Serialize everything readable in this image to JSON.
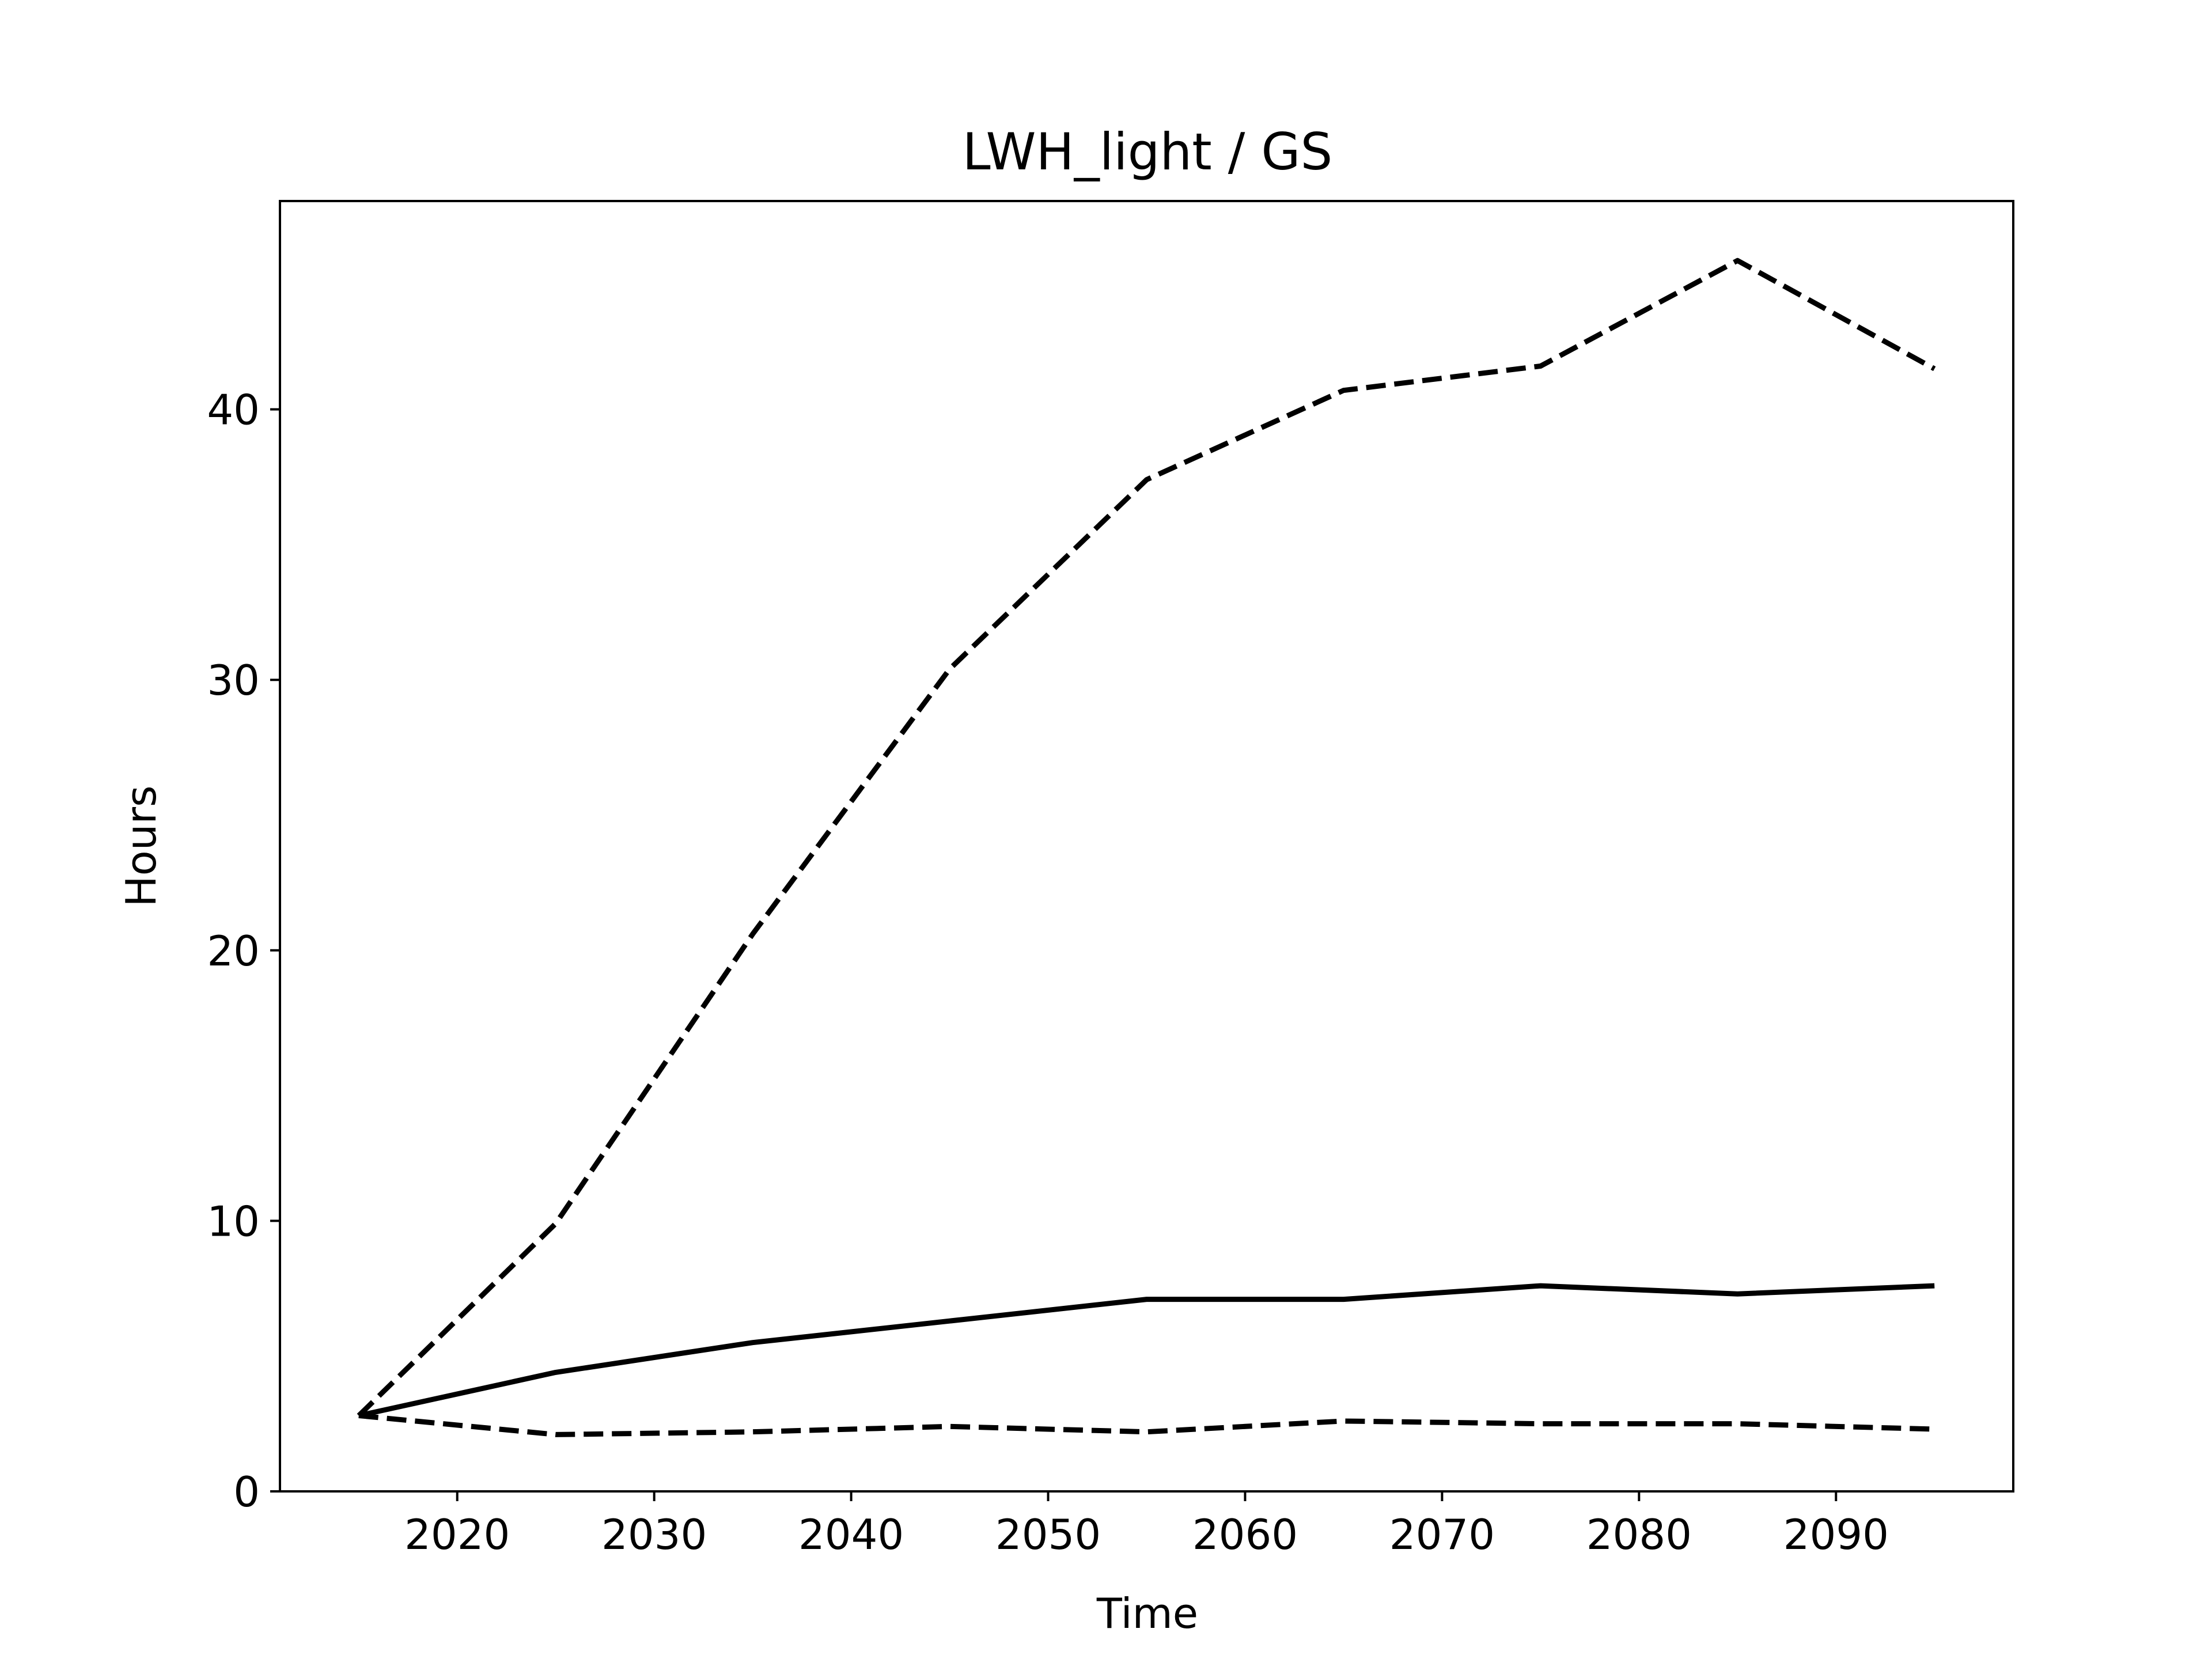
{
  "chart_data": {
    "type": "line",
    "title": "LWH_light / GS",
    "xlabel": "Time",
    "ylabel": "Hours",
    "xlim": [
      2011,
      2099
    ],
    "ylim": [
      0,
      47.7
    ],
    "x_ticks": [
      2020,
      2030,
      2040,
      2050,
      2060,
      2070,
      2080,
      2090
    ],
    "y_ticks": [
      0,
      10,
      20,
      30,
      40
    ],
    "grid": false,
    "legend": "none",
    "x": [
      2015,
      2025,
      2035,
      2045,
      2055,
      2065,
      2075,
      2085,
      2095
    ],
    "series": [
      {
        "style": "solid",
        "color": "#000000",
        "values": [
          2.8,
          4.4,
          5.5,
          6.3,
          7.1,
          7.1,
          7.6,
          7.3,
          7.6
        ]
      },
      {
        "style": "dashed",
        "color": "#000000",
        "values": [
          2.8,
          9.9,
          20.6,
          30.4,
          37.4,
          40.7,
          41.6,
          45.5,
          41.5
        ]
      },
      {
        "style": "dashed",
        "color": "#000000",
        "values": [
          2.8,
          2.1,
          2.2,
          2.4,
          2.2,
          2.6,
          2.5,
          2.5,
          2.3
        ]
      }
    ]
  }
}
